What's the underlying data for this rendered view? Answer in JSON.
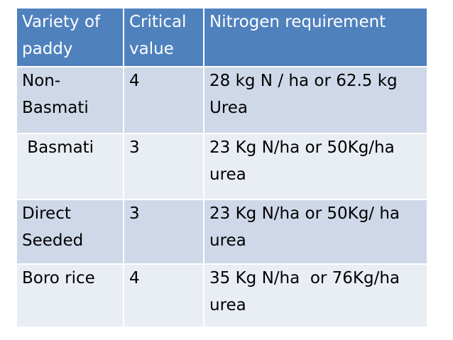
{
  "table": {
    "headers": [
      "Variety of paddy",
      "Critical value",
      "Nitrogen requirement"
    ],
    "rows": [
      [
        "Non-Basmati",
        "4",
        "28 kg N / ha or 62.5 kg Urea"
      ],
      [
        " Basmati",
        "3",
        "23 Kg N/ha or 50Kg/ha urea"
      ],
      [
        "Direct Seeded",
        "3",
        "23 Kg N/ha or 50Kg/ ha urea"
      ],
      [
        "Boro rice",
        "4",
        "35 Kg N/ha  or 76Kg/ha urea"
      ]
    ]
  },
  "colors": {
    "header_bg": "#4f81bd",
    "row_dark": "#cfd8e8",
    "row_light": "#e9edf4"
  }
}
